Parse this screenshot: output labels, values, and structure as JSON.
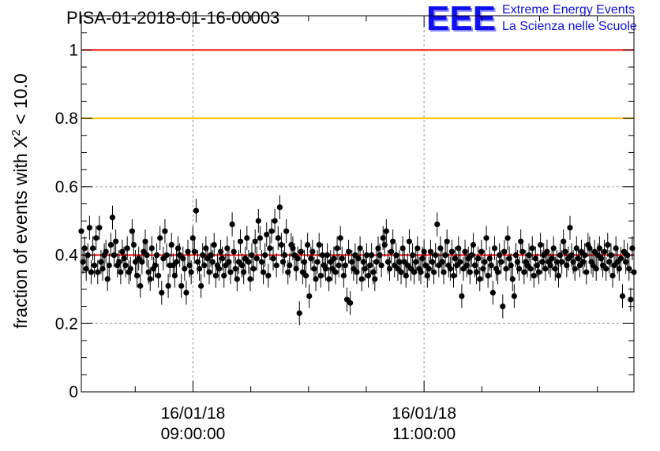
{
  "title": "PISA-01-2018-01-16-00003",
  "logo": {
    "mark": "EEE",
    "line1": "Extreme Energy Events",
    "line2": "La Scienza nelle Scuole"
  },
  "chart_data": {
    "type": "scatter",
    "title": "PISA-01-2018-01-16-00003",
    "ylabel_main": "fraction of events with X",
    "ylabel_sup": "2",
    "ylabel_tail": " < 10.0",
    "ylim": [
      0,
      1.1
    ],
    "yticks": [
      {
        "value": 0,
        "label": "0"
      },
      {
        "value": 0.2,
        "label": "0.2"
      },
      {
        "value": 0.4,
        "label": "0.4"
      },
      {
        "value": 0.6,
        "label": "0.6"
      },
      {
        "value": 0.8,
        "label": "0.8"
      },
      {
        "value": 1,
        "label": "1"
      }
    ],
    "xlim": [
      "2018-01-16 08:02",
      "2018-01-16 12:49"
    ],
    "xticks": [
      {
        "value": "2018-01-16 09:00",
        "date": "16/01/18",
        "time": "09:00:00"
      },
      {
        "value": "2018-01-16 11:00",
        "date": "16/01/18",
        "time": "11:00:00"
      }
    ],
    "xminor_ticks": [
      "2018-01-16 08:30",
      "2018-01-16 09:30",
      "2018-01-16 10:00",
      "2018-01-16 10:30",
      "2018-01-16 11:30",
      "2018-01-16 12:00",
      "2018-01-16 12:30"
    ],
    "grid": true,
    "reference_lines": [
      {
        "value": 1.0,
        "color": "#ff0000"
      },
      {
        "value": 0.8,
        "color": "#ffc000"
      },
      {
        "value": 0.4,
        "color": "#ff0000"
      }
    ],
    "marker_color": "#000000",
    "points": {
      "x_start": "2018-01-16 08:02",
      "x_end": "2018-01-16 12:49",
      "y": [
        0.47,
        0.38,
        0.42,
        0.36,
        0.4,
        0.48,
        0.35,
        0.42,
        0.37,
        0.45,
        0.35,
        0.48,
        0.38,
        0.36,
        0.4,
        0.41,
        0.33,
        0.37,
        0.43,
        0.51,
        0.4,
        0.44,
        0.37,
        0.38,
        0.35,
        0.41,
        0.39,
        0.37,
        0.42,
        0.35,
        0.36,
        0.47,
        0.43,
        0.38,
        0.34,
        0.39,
        0.31,
        0.38,
        0.41,
        0.44,
        0.4,
        0.35,
        0.33,
        0.42,
        0.36,
        0.37,
        0.4,
        0.34,
        0.45,
        0.29,
        0.39,
        0.47,
        0.4,
        0.31,
        0.37,
        0.43,
        0.37,
        0.34,
        0.38,
        0.42,
        0.4,
        0.31,
        0.39,
        0.36,
        0.29,
        0.41,
        0.37,
        0.35,
        0.45,
        0.41,
        0.53,
        0.38,
        0.36,
        0.31,
        0.4,
        0.37,
        0.42,
        0.39,
        0.35,
        0.4,
        0.38,
        0.43,
        0.34,
        0.37,
        0.36,
        0.41,
        0.39,
        0.34,
        0.37,
        0.42,
        0.38,
        0.35,
        0.49,
        0.41,
        0.36,
        0.33,
        0.38,
        0.44,
        0.37,
        0.35,
        0.39,
        0.45,
        0.38,
        0.33,
        0.4,
        0.36,
        0.44,
        0.39,
        0.5,
        0.45,
        0.38,
        0.35,
        0.4,
        0.46,
        0.34,
        0.42,
        0.47,
        0.39,
        0.5,
        0.37,
        0.45,
        0.54,
        0.43,
        0.38,
        0.4,
        0.47,
        0.35,
        0.37,
        0.43,
        0.42,
        0.4,
        0.36,
        0.39,
        0.23,
        0.41,
        0.35,
        0.38,
        0.34,
        0.43,
        0.28,
        0.39,
        0.41,
        0.36,
        0.33,
        0.38,
        0.43,
        0.34,
        0.4,
        0.37,
        0.36,
        0.4,
        0.33,
        0.38,
        0.36,
        0.39,
        0.35,
        0.42,
        0.37,
        0.45,
        0.39,
        0.34,
        0.37,
        0.27,
        0.41,
        0.26,
        0.38,
        0.36,
        0.4,
        0.35,
        0.39,
        0.42,
        0.33,
        0.38,
        0.36,
        0.4,
        0.34,
        0.37,
        0.4,
        0.35,
        0.33,
        0.38,
        0.42,
        0.4,
        0.37,
        0.45,
        0.43,
        0.47,
        0.38,
        0.36,
        0.41,
        0.44,
        0.37,
        0.4,
        0.36,
        0.38,
        0.35,
        0.42,
        0.38,
        0.34,
        0.37,
        0.44,
        0.36,
        0.4,
        0.35,
        0.38,
        0.42,
        0.36,
        0.35,
        0.39,
        0.41,
        0.37,
        0.34,
        0.36,
        0.41,
        0.38,
        0.35,
        0.4,
        0.49,
        0.37,
        0.42,
        0.38,
        0.35,
        0.4,
        0.44,
        0.37,
        0.36,
        0.41,
        0.34,
        0.39,
        0.37,
        0.42,
        0.38,
        0.28,
        0.36,
        0.41,
        0.37,
        0.39,
        0.35,
        0.4,
        0.43,
        0.37,
        0.35,
        0.39,
        0.33,
        0.41,
        0.36,
        0.38,
        0.45,
        0.34,
        0.39,
        0.37,
        0.29,
        0.42,
        0.36,
        0.35,
        0.4,
        0.38,
        0.25,
        0.41,
        0.36,
        0.45,
        0.39,
        0.37,
        0.33,
        0.28,
        0.4,
        0.38,
        0.36,
        0.44,
        0.41,
        0.35,
        0.38,
        0.37,
        0.4,
        0.36,
        0.42,
        0.34,
        0.39,
        0.37,
        0.35,
        0.43,
        0.38,
        0.4,
        0.36,
        0.41,
        0.38,
        0.37,
        0.39,
        0.42,
        0.36,
        0.38,
        0.34,
        0.4,
        0.38,
        0.44,
        0.41,
        0.37,
        0.39,
        0.48,
        0.4,
        0.38,
        0.36,
        0.42,
        0.39,
        0.37,
        0.41,
        0.38,
        0.4,
        0.35,
        0.43,
        0.42,
        0.38,
        0.37,
        0.41,
        0.36,
        0.4,
        0.42,
        0.39,
        0.37,
        0.41,
        0.36,
        0.43,
        0.38,
        0.4,
        0.34,
        0.37,
        0.42,
        0.38,
        0.36,
        0.39,
        0.28,
        0.41,
        0.38,
        0.4,
        0.36,
        0.27,
        0.42,
        0.35
      ]
    }
  }
}
